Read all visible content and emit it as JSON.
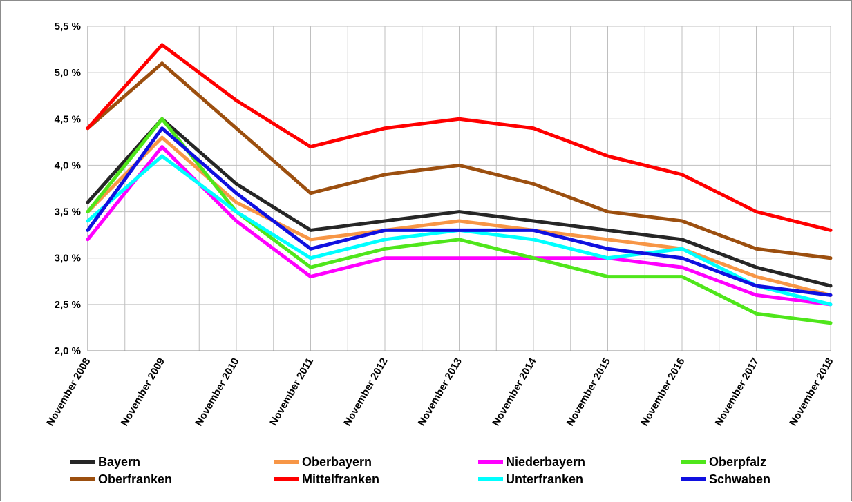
{
  "chart_data": {
    "type": "line",
    "title": "",
    "xlabel": "",
    "ylabel": "",
    "categories": [
      "November 2008",
      "November 2009",
      "November 2010",
      "November 2011",
      "November 2012",
      "November 2013",
      "November 2014",
      "November 2015",
      "November 2016",
      "November 2017",
      "November 2018"
    ],
    "ylim": [
      2.0,
      5.5
    ],
    "y_ticks": [
      2.0,
      2.5,
      3.0,
      3.5,
      4.0,
      4.5,
      5.0,
      5.5
    ],
    "y_tick_labels": [
      "2,0 %",
      "2,5 %",
      "3,0 %",
      "3,5 %",
      "4,0 %",
      "4,5 %",
      "5,0 %",
      "5,5 %"
    ],
    "grid": true,
    "legend_position": "bottom",
    "series": [
      {
        "name": "Bayern",
        "color": "#262626",
        "values": [
          3.6,
          4.5,
          3.8,
          3.3,
          3.4,
          3.5,
          3.4,
          3.3,
          3.2,
          2.9,
          2.7
        ]
      },
      {
        "name": "Oberbayern",
        "color": "#f79646",
        "values": [
          3.5,
          4.3,
          3.6,
          3.2,
          3.3,
          3.4,
          3.3,
          3.2,
          3.1,
          2.8,
          2.6
        ]
      },
      {
        "name": "Niederbayern",
        "color": "#ff00ff",
        "values": [
          3.2,
          4.2,
          3.4,
          2.8,
          3.0,
          3.0,
          3.0,
          3.0,
          2.9,
          2.6,
          2.5
        ]
      },
      {
        "name": "Oberpfalz",
        "color": "#4fe61b",
        "values": [
          3.5,
          4.5,
          3.5,
          2.9,
          3.1,
          3.2,
          3.0,
          2.8,
          2.8,
          2.4,
          2.3
        ]
      },
      {
        "name": "Oberfranken",
        "color": "#9c4f0f",
        "values": [
          4.4,
          5.1,
          4.4,
          3.7,
          3.9,
          4.0,
          3.8,
          3.5,
          3.4,
          3.1,
          3.0
        ]
      },
      {
        "name": "Mittelfranken",
        "color": "#ff0000",
        "values": [
          4.4,
          5.3,
          4.7,
          4.2,
          4.4,
          4.5,
          4.4,
          4.1,
          3.9,
          3.5,
          3.3
        ]
      },
      {
        "name": "Unterfranken",
        "color": "#00ffff",
        "values": [
          3.4,
          4.1,
          3.5,
          3.0,
          3.2,
          3.3,
          3.2,
          3.0,
          3.1,
          2.7,
          2.5
        ]
      },
      {
        "name": "Schwaben",
        "color": "#1010e0",
        "values": [
          3.3,
          4.4,
          3.7,
          3.1,
          3.3,
          3.3,
          3.3,
          3.1,
          3.0,
          2.7,
          2.6
        ]
      }
    ]
  }
}
